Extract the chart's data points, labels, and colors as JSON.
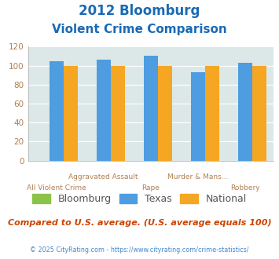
{
  "title_line1": "2012 Bloomburg",
  "title_line2": "Violent Crime Comparison",
  "categories": [
    "All Violent Crime",
    "Aggravated Assault",
    "Rape",
    "Murder & Mans...",
    "Robbery"
  ],
  "bloomburg": [
    0,
    0,
    0,
    0,
    0
  ],
  "texas": [
    105,
    106,
    110,
    93,
    103
  ],
  "national": [
    100,
    100,
    100,
    100,
    100
  ],
  "bar_colors": {
    "bloomburg": "#8bc34a",
    "texas": "#4d9de0",
    "national": "#f5a623"
  },
  "ylim": [
    0,
    120
  ],
  "yticks": [
    0,
    20,
    40,
    60,
    80,
    100,
    120
  ],
  "bg_color": "#dce8e8",
  "title_color": "#1a6ab5",
  "tick_color": "#b08050",
  "legend_labels": [
    "Bloomburg",
    "Texas",
    "National"
  ],
  "legend_text_color": "#555555",
  "footer_text": "Compared to U.S. average. (U.S. average equals 100)",
  "copyright_text": "© 2025 CityRating.com - https://www.cityrating.com/crime-statistics/",
  "footer_color": "#cc4400",
  "copyright_color": "#4488cc"
}
